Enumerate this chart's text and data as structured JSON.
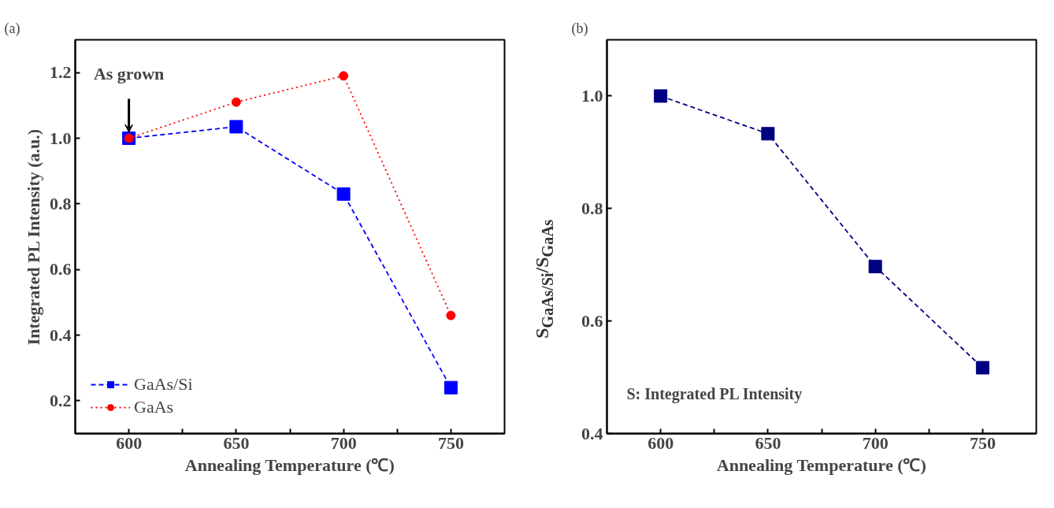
{
  "chart_data": [
    {
      "type": "line",
      "title": "(a)",
      "xlabel": "Annealing Temperature (℃)",
      "ylabel": "Integrated PL Intensity (a.u.)",
      "x": [
        600,
        650,
        700,
        750
      ],
      "series": [
        {
          "name": "GaAs/Si",
          "color": "#0000ff",
          "values": [
            1.0,
            1.035,
            0.83,
            0.24
          ],
          "marker": "square",
          "line_style": "dashed"
        },
        {
          "name": "GaAs",
          "color": "#ff0000",
          "values": [
            1.0,
            1.11,
            1.19,
            0.46
          ],
          "marker": "circle",
          "line_style": "dotted"
        }
      ],
      "xlim": [
        575,
        775
      ],
      "xticks": [
        600,
        {
          "value": 625,
          "label": null
        },
        650,
        {
          "value": 675,
          "label": null
        },
        700,
        {
          "value": 725,
          "label": null
        },
        750
      ],
      "ylim": [
        0.1,
        1.3
      ],
      "yticks": [
        {
          "value": 0.2,
          "label": "0.2"
        },
        {
          "value": 0.4,
          "label": "0.4"
        },
        {
          "value": 0.6,
          "label": "0.6"
        },
        {
          "value": 0.8,
          "label": "0.8"
        },
        {
          "value": 1.0,
          "label": "1.0"
        },
        {
          "value": 1.2,
          "label": "1.2"
        }
      ],
      "annotations": [
        {
          "text": "As grown",
          "x": 600,
          "y": 1.0
        }
      ],
      "legend": "bottom left",
      "grid": false
    },
    {
      "type": "line",
      "title": "(b)",
      "xlabel": "Annealing Temperature (℃)",
      "ylabel": "S$_{GaAs/Si}$/S$_{GaAs}$",
      "x": [
        600,
        650,
        700,
        750
      ],
      "series": [
        {
          "color": "#000080",
          "values": [
            1.0,
            0.933,
            0.697,
            0.517
          ],
          "marker": "square",
          "line_style": "dashed"
        }
      ],
      "xlim": [
        575,
        775
      ],
      "xticks": [
        600,
        {
          "value": 625,
          "label": null
        },
        650,
        {
          "value": 675,
          "label": null
        },
        700,
        {
          "value": 725,
          "label": null
        },
        750
      ],
      "ylim": [
        0.4,
        1.1
      ],
      "yticks": [
        {
          "value": 0.4,
          "label": "0.4"
        },
        {
          "value": 0.6,
          "label": "0.6"
        },
        {
          "value": 0.8,
          "label": "0.8"
        },
        {
          "value": 1.0,
          "label": "1.0"
        }
      ],
      "annotations": [
        "S: Integrated PL Intensity"
      ],
      "grid": false
    }
  ]
}
